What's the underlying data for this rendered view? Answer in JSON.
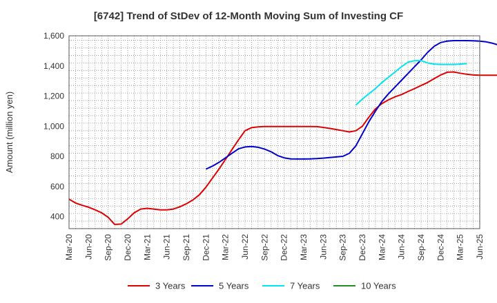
{
  "chart_data": {
    "type": "line",
    "title": "[6742]  Trend of StDev of 12-Month Moving Sum of Investing CF",
    "ylabel": "Amount (million yen)",
    "xlabel": "",
    "ylim": [
      320,
      1600
    ],
    "yticks": [
      400,
      600,
      800,
      1000,
      1200,
      1400,
      1600
    ],
    "x_tick_labels": [
      "Mar-20",
      "Jun-20",
      "Sep-20",
      "Dec-20",
      "Mar-21",
      "Jun-21",
      "Sep-21",
      "Dec-21",
      "Mar-22",
      "Jun-22",
      "Sep-22",
      "Dec-22",
      "Mar-23",
      "Jun-23",
      "Sep-23",
      "Dec-23",
      "Mar-24",
      "Jun-24",
      "Sep-24",
      "Dec-24",
      "Mar-25",
      "Jun-25"
    ],
    "grid": true,
    "legend_position": "bottom",
    "x_start": "2020-03",
    "series": [
      {
        "name": "3 Years",
        "color": "#dd0000",
        "start_month": "2020-03",
        "values": [
          515,
          490,
          475,
          462,
          445,
          425,
          395,
          348,
          350,
          385,
          425,
          450,
          455,
          450,
          445,
          445,
          450,
          465,
          485,
          510,
          545,
          595,
          655,
          715,
          780,
          845,
          910,
          970,
          990,
          995,
          998,
          998,
          998,
          998,
          998,
          998,
          998,
          998,
          997,
          992,
          985,
          978,
          970,
          962,
          970,
          1000,
          1060,
          1115,
          1150,
          1175,
          1195,
          1210,
          1230,
          1250,
          1270,
          1290,
          1315,
          1340,
          1358,
          1360,
          1352,
          1345,
          1340,
          1338,
          1338,
          1338,
          1338,
          1338
        ]
      },
      {
        "name": "5 Years",
        "color": "#0000cc",
        "start_month": "2021-12",
        "values": [
          715,
          735,
          760,
          790,
          820,
          850,
          862,
          865,
          860,
          848,
          830,
          805,
          790,
          783,
          782,
          782,
          783,
          785,
          788,
          792,
          796,
          800,
          820,
          870,
          950,
          1030,
          1100,
          1165,
          1215,
          1260,
          1305,
          1350,
          1395,
          1440,
          1490,
          1530,
          1555,
          1565,
          1568,
          1568,
          1568,
          1567,
          1565,
          1560,
          1550,
          1538
        ]
      },
      {
        "name": "7 Years",
        "color": "#00e5ee",
        "start_month": "2023-11",
        "values": [
          1140,
          1180,
          1215,
          1250,
          1290,
          1325,
          1360,
          1395,
          1425,
          1435,
          1435,
          1420,
          1412,
          1410,
          1410,
          1410,
          1412,
          1415
        ]
      },
      {
        "name": "10 Years",
        "color": "#228b22",
        "start_month": "2025-03",
        "values": []
      }
    ]
  }
}
